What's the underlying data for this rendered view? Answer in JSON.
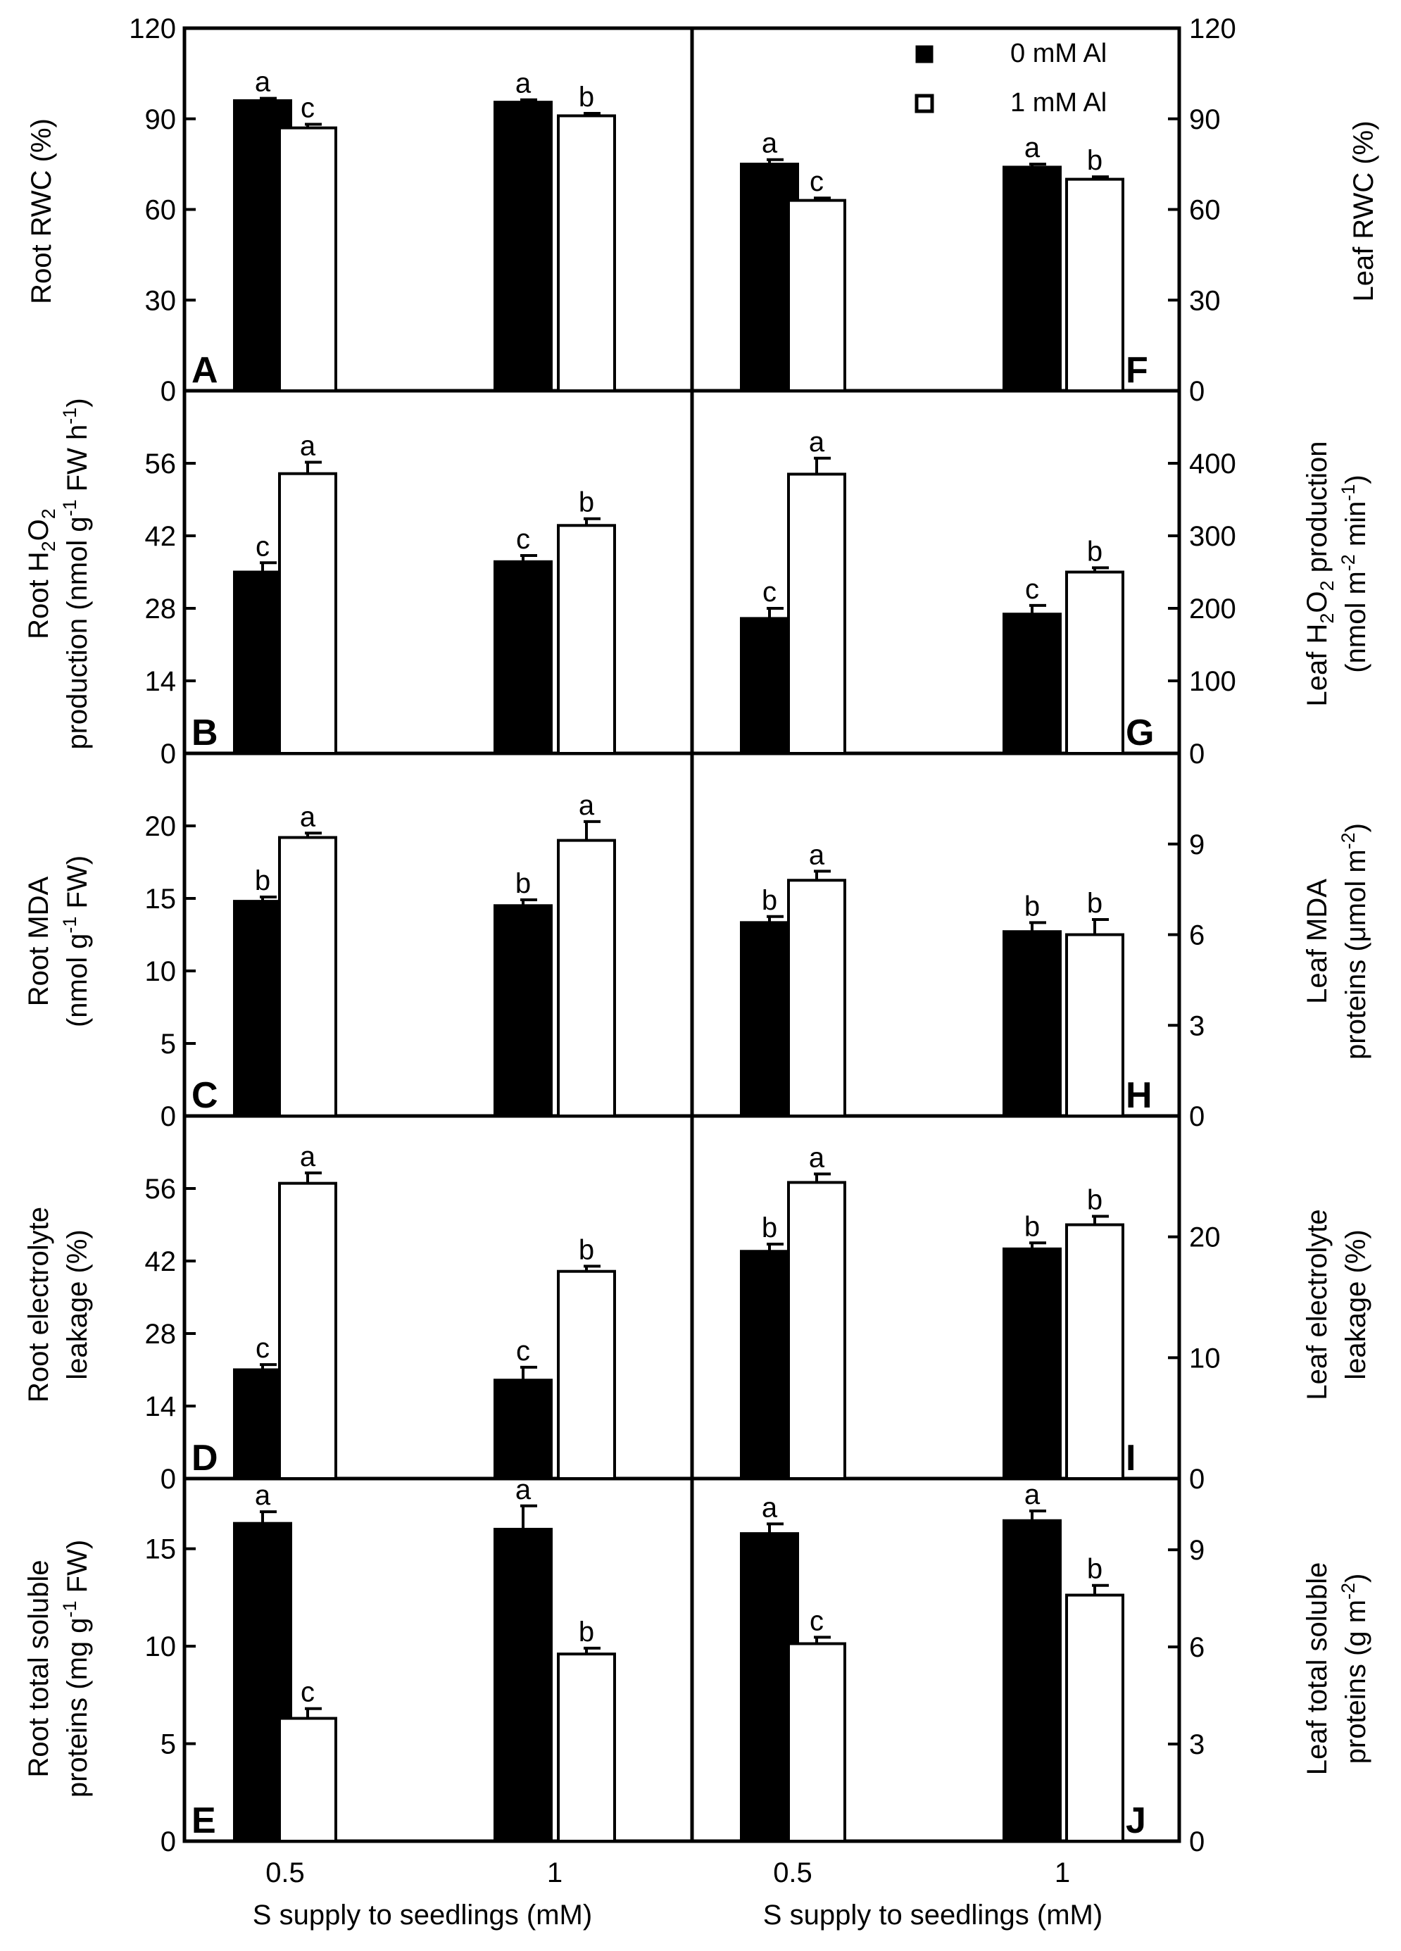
{
  "legend": [
    {
      "label": "0 mM Al",
      "fill": "#000000"
    },
    {
      "label": "1 mM Al",
      "fill": "#ffffff"
    }
  ],
  "x_axis_title": "S supply to seedlings (mM)",
  "chart_data": [
    {
      "type": "bar",
      "panel": "A",
      "side": "left",
      "ylabel": "Root RWC (%)",
      "ylim": [
        0,
        120
      ],
      "ticks": [
        0,
        30,
        60,
        90,
        120
      ],
      "categories": [
        "0.5",
        "1"
      ],
      "series": [
        {
          "name": "0 mM Al",
          "values": [
            96,
            95.5
          ],
          "errors": [
            0.8,
            0.8
          ]
        },
        {
          "name": "1 mM Al",
          "values": [
            87,
            91
          ],
          "errors": [
            1.2,
            0.8
          ]
        }
      ],
      "letters": [
        [
          "a",
          "a"
        ],
        [
          "c",
          "b"
        ]
      ]
    },
    {
      "type": "bar",
      "panel": "B",
      "side": "left",
      "ylabel": "Root H2O2 production (nmol g-1 FW h-1)",
      "ylim": [
        0,
        70
      ],
      "ticks": [
        0,
        14,
        28,
        42,
        56
      ],
      "categories": [
        "0.5",
        "1"
      ],
      "series": [
        {
          "name": "0 mM Al",
          "values": [
            35,
            37
          ],
          "errors": [
            1.8,
            1.2
          ]
        },
        {
          "name": "1 mM Al",
          "values": [
            54,
            44
          ],
          "errors": [
            2.2,
            1.3
          ]
        }
      ],
      "letters": [
        [
          "c",
          "c"
        ],
        [
          "a",
          "b"
        ]
      ]
    },
    {
      "type": "bar",
      "panel": "C",
      "side": "left",
      "ylabel": "Root MDA (nmol g-1 FW)",
      "ylim": [
        0,
        25
      ],
      "ticks": [
        0,
        5,
        10,
        15,
        20
      ],
      "categories": [
        "0.5",
        "1"
      ],
      "series": [
        {
          "name": "0 mM Al",
          "values": [
            14.8,
            14.5
          ],
          "errors": [
            0.3,
            0.4
          ]
        },
        {
          "name": "1 mM Al",
          "values": [
            19.2,
            19
          ],
          "errors": [
            0.3,
            1.3
          ]
        }
      ],
      "letters": [
        [
          "b",
          "b"
        ],
        [
          "a",
          "a"
        ]
      ]
    },
    {
      "type": "bar",
      "panel": "D",
      "side": "left",
      "ylabel": "Root electrolyte leakage (%)",
      "ylim": [
        0,
        70
      ],
      "ticks": [
        0,
        14,
        28,
        42,
        56
      ],
      "categories": [
        "0.5",
        "1"
      ],
      "series": [
        {
          "name": "0 mM Al",
          "values": [
            21,
            19
          ],
          "errors": [
            1,
            2.5
          ]
        },
        {
          "name": "1 mM Al",
          "values": [
            57,
            40
          ],
          "errors": [
            2,
            1
          ]
        }
      ],
      "letters": [
        [
          "c",
          "c"
        ],
        [
          "a",
          "b"
        ]
      ]
    },
    {
      "type": "bar",
      "panel": "E",
      "side": "left",
      "ylabel": "Root total soluble proteins (mg g-1 FW)",
      "ylim": [
        0,
        18.6
      ],
      "ticks": [
        0,
        5,
        10,
        15
      ],
      "categories": [
        "0.5",
        "1"
      ],
      "series": [
        {
          "name": "0 mM Al",
          "values": [
            16.3,
            16
          ],
          "errors": [
            0.6,
            1.2
          ]
        },
        {
          "name": "1 mM Al",
          "values": [
            6.3,
            9.6
          ],
          "errors": [
            0.5,
            0.3
          ]
        }
      ],
      "letters": [
        [
          "a",
          "a"
        ],
        [
          "c",
          "b"
        ]
      ]
    },
    {
      "type": "bar",
      "panel": "F",
      "side": "right",
      "ylabel": "Leaf RWC (%)",
      "ylim": [
        0,
        120
      ],
      "ticks": [
        0,
        30,
        60,
        90,
        120
      ],
      "categories": [
        "0.5",
        "1"
      ],
      "series": [
        {
          "name": "0 mM Al",
          "values": [
            75,
            74
          ],
          "errors": [
            1.5,
            1
          ]
        },
        {
          "name": "1 mM Al",
          "values": [
            63,
            70
          ],
          "errors": [
            0.8,
            0.8
          ]
        }
      ],
      "letters": [
        [
          "a",
          "a"
        ],
        [
          "c",
          "b"
        ]
      ]
    },
    {
      "type": "bar",
      "panel": "G",
      "side": "right",
      "ylabel": "Leaf H2O2 production (nmol m-2 min-1)",
      "ylim": [
        0,
        500
      ],
      "ticks": [
        0,
        100,
        200,
        300,
        400
      ],
      "categories": [
        "0.5",
        "1"
      ],
      "series": [
        {
          "name": "0 mM Al",
          "values": [
            186,
            192
          ],
          "errors": [
            14,
            12
          ]
        },
        {
          "name": "1 mM Al",
          "values": [
            385,
            250
          ],
          "errors": [
            22,
            6
          ]
        }
      ],
      "letters": [
        [
          "c",
          "c"
        ],
        [
          "a",
          "b"
        ]
      ]
    },
    {
      "type": "bar",
      "panel": "H",
      "side": "right",
      "ylabel": "Leaf MDA proteins (μmol m-2)",
      "ylim": [
        0,
        12
      ],
      "ticks": [
        0,
        3,
        6,
        9
      ],
      "categories": [
        "0.5",
        "1"
      ],
      "series": [
        {
          "name": "0 mM Al",
          "values": [
            6.4,
            6.1
          ],
          "errors": [
            0.2,
            0.3
          ]
        },
        {
          "name": "1 mM Al",
          "values": [
            7.8,
            6
          ],
          "errors": [
            0.3,
            0.5
          ]
        }
      ],
      "letters": [
        [
          "b",
          "b"
        ],
        [
          "a",
          "b"
        ]
      ]
    },
    {
      "type": "bar",
      "panel": "I",
      "side": "right",
      "ylabel": "Leaf electrolyte leakage (%)",
      "ylim": [
        0,
        30
      ],
      "ticks": [
        0,
        10,
        20
      ],
      "categories": [
        "0.5",
        "1"
      ],
      "series": [
        {
          "name": "0 mM Al",
          "values": [
            18.8,
            19
          ],
          "errors": [
            0.6,
            0.5
          ]
        },
        {
          "name": "1 mM Al",
          "values": [
            24.5,
            21
          ],
          "errors": [
            0.7,
            0.7
          ]
        }
      ],
      "letters": [
        [
          "b",
          "b"
        ],
        [
          "a",
          "b"
        ]
      ]
    },
    {
      "type": "bar",
      "panel": "J",
      "side": "right",
      "ylabel": "Leaf total soluble proteins (g m-2)",
      "ylim": [
        0,
        11.2
      ],
      "ticks": [
        0,
        3,
        6,
        9
      ],
      "categories": [
        "0.5",
        "1"
      ],
      "series": [
        {
          "name": "0 mM Al",
          "values": [
            9.5,
            9.9
          ],
          "errors": [
            0.3,
            0.3
          ]
        },
        {
          "name": "1 mM Al",
          "values": [
            6.1,
            7.6
          ],
          "errors": [
            0.2,
            0.3
          ]
        }
      ],
      "letters": [
        [
          "a",
          "a"
        ],
        [
          "c",
          "b"
        ]
      ]
    }
  ]
}
